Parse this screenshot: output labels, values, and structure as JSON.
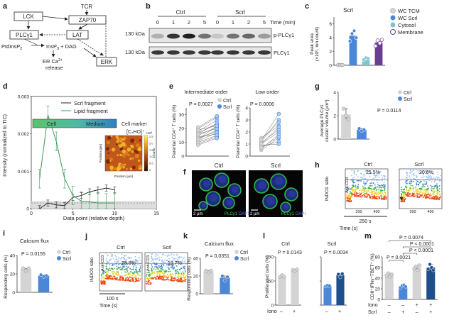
{
  "panels": {
    "a": {
      "letter": "a",
      "nodes": {
        "tcr": "TCR",
        "lck": "LCK",
        "zap70": "ZAP70",
        "plcg1": "PLCγ1",
        "lat": "LAT",
        "ptdins": "PtdInsP",
        "ptdins_sub": "2",
        "insp": "InsP",
        "insp_sub": "3",
        "dag": " + DAG",
        "er1": "ER Ca",
        "er_sup": "2+",
        "er2": "release",
        "erk": "ERK"
      }
    },
    "b": {
      "letter": "b",
      "ctrl": "Ctrl",
      "scrl": "Scrl",
      "times": [
        "0",
        "1",
        "2",
        "5",
        "0",
        "1",
        "2",
        "5"
      ],
      "time_label": "Time (min)",
      "kda1": "130 kDa",
      "kda2": "130 kDa",
      "band1": "p-PLCγ1",
      "band2": "PLCγ1"
    },
    "c": {
      "letter": "c",
      "title": "Scrl",
      "ylabel1": "Peak area",
      "ylabel2": "(×10⁶, ion count)",
      "legend": [
        "WC TCM",
        "WC Scrl",
        "Cytosol",
        "Membrane"
      ]
    },
    "d": {
      "letter": "d",
      "legend": [
        "Scrl fragment",
        "Lipid fragment"
      ],
      "bar_cell": "Cell",
      "bar_medium": "Medium",
      "marker1": "Cell marker",
      "marker2": "[C₇HO]⁺",
      "inset_x": "Position (µm)",
      "inset_y": "Position (µm)",
      "inset_counts": "Counts",
      "inset_scale": "×10³",
      "inset_ticks": [
        "2.5",
        "2.0",
        "1.5",
        "1.0",
        "0.5",
        "0"
      ],
      "xlabel": "Data point (relative depth)",
      "ylabel": "Intensity (normalized to TIC)"
    },
    "e": {
      "letter": "e",
      "left_title": "Intermediate order",
      "right_title": "Low order",
      "left_p": "P = 0.0027",
      "right_p": "P = 0.0006",
      "left_ylabel": "Parental CD4⁺ T cells (%)",
      "right_ylabel": "Parental CD4⁺ T cells (%)",
      "legend": [
        "Ctrl",
        "Scrl"
      ]
    },
    "f": {
      "letter": "f",
      "ctrl": "Ctrl",
      "scrl": "Scrl",
      "scale": "2 µm",
      "stain1": "PLCγ1",
      "stain2": "DAPI"
    },
    "g": {
      "letter": "g",
      "p": "P = 0.0114",
      "ylabel1": "Average PLCγ1",
      "ylabel2": "cluster volume (µm³)",
      "legend": [
        "Ctrl",
        "Scrl"
      ]
    },
    "h": {
      "letter": "h",
      "ctrl": "Ctrl",
      "scrl": "Scrl",
      "pct_ctrl": "25.5%",
      "pct_scrl": "20.6%",
      "ylabel": "INDO1 ratio",
      "xlabel": "Time (s)",
      "anticd3": "Anti-CD3",
      "bar_label": "250 s"
    },
    "i": {
      "letter": "i",
      "title": "Calcium flux",
      "p": "P = 0.0155",
      "ylabel": "Responding cells (%)",
      "legend": [
        "Ctrl",
        "Scrl"
      ]
    },
    "j": {
      "letter": "j",
      "ctrl": "Ctrl",
      "scrl": "Scrl",
      "pct_ctrl": "25.8%",
      "pct_scrl": "19.7%",
      "ylabel": "INDO1 ratio",
      "xlabel": "Time (s)",
      "anticd3": "Anti-CD3",
      "bar_label": "100 s"
    },
    "k": {
      "letter": "k",
      "title": "Calcium flux",
      "p": "P = 0.0351",
      "ylabel": "Responding cells (%)",
      "legend": [
        "Ctrl",
        "Scrl"
      ]
    },
    "l": {
      "letter": "l",
      "left_title": "Ctrl",
      "right_title": "Scrl",
      "left_p": "P = 0.0143",
      "right_p": "P = 0.0034",
      "ylabel": "Proliferated cells (%)",
      "iono": "Iono",
      "minus": "–",
      "plus": "+"
    },
    "m": {
      "letter": "m",
      "p_top": "P = 0.0074",
      "p_mid1": "P < 0.0001",
      "p_mid2": "P < 0.0001",
      "p_low": "P = 0.0021",
      "ylabel": "CD8⁺IFNγ⁺TBET⁺ (%)",
      "iono": "Iono",
      "scrl": "Scrl",
      "row_iono": [
        "–",
        "–",
        "+",
        "+"
      ],
      "row_scrl": [
        "–",
        "+",
        "–",
        "+"
      ]
    }
  },
  "colors": {
    "ctrl": "#d4d4d4",
    "scrl": "#4b87d6",
    "dark_blue": "#1f4e8c",
    "cytosol": "#7fc4cc",
    "membrane": "#6a3d8f",
    "lipid_green": "#3a9a54",
    "accent_green": "#2ea84a"
  },
  "chart_data": [
    {
      "panel": "c",
      "type": "bar",
      "categories": [
        "WC TCM",
        "WC Scrl",
        "Cytosol",
        "Membrane"
      ],
      "values": [
        0.05,
        4.3,
        1.0,
        3.3
      ],
      "ylabel": "Peak area (×10⁶, ion count)",
      "ylim": [
        0,
        7
      ],
      "yticks": [
        0,
        2,
        4,
        6
      ]
    },
    {
      "panel": "d",
      "type": "line",
      "x": [
        1,
        2,
        3,
        4,
        5,
        6,
        7,
        8,
        9,
        10
      ],
      "series": [
        {
          "name": "Scrl fragment",
          "values": [
            0.0,
            0.00015,
            0.0001,
            8e-05,
            0.0003,
            0.00035,
            0.00045,
            0.0005,
            0.00055,
            0.0005
          ]
        },
        {
          "name": "Lipid fragment",
          "values": [
            0.0008,
            0.0025,
            0.0018,
            0.0008,
            0.00035,
            0.0002,
            0.00018,
            0.00015,
            0.00015,
            0.00015
          ]
        }
      ],
      "xlabel": "Data point (relative depth)",
      "ylabel": "Intensity (normalized to TIC)",
      "xlim": [
        0,
        15
      ],
      "ylim": [
        0,
        0.003
      ],
      "xticks": [
        0,
        5,
        10,
        15
      ],
      "yticks": [
        0,
        0.001,
        0.002,
        0.003
      ]
    },
    {
      "panel": "e-left",
      "type": "scatter",
      "x": [
        "Ctrl",
        "Scrl"
      ],
      "pairs": [
        [
          9,
          14
        ],
        [
          12,
          19
        ],
        [
          14,
          16
        ],
        [
          15,
          21
        ],
        [
          17,
          23
        ],
        [
          18,
          26
        ],
        [
          13,
          18
        ],
        [
          11,
          17
        ],
        [
          16,
          24
        ],
        [
          20,
          28
        ],
        [
          10,
          15
        ],
        [
          19,
          22
        ],
        [
          8,
          13
        ],
        [
          21,
          29
        ],
        [
          16,
          20
        ],
        [
          12,
          22
        ]
      ],
      "ylabel": "Parental CD4⁺ T cells (%)",
      "ylim": [
        0,
        35
      ],
      "yticks": [
        0,
        10,
        20,
        30
      ]
    },
    {
      "panel": "e-right",
      "type": "scatter",
      "x": [
        "Ctrl",
        "Scrl"
      ],
      "pairs": [
        [
          0.5,
          1.5
        ],
        [
          1.0,
          2.0
        ],
        [
          1.2,
          3.0
        ],
        [
          0.8,
          1.2
        ],
        [
          1.5,
          2.5
        ],
        [
          0.6,
          1.8
        ],
        [
          1.1,
          2.2
        ],
        [
          0.9,
          1.0
        ],
        [
          1.3,
          3.5
        ],
        [
          0.7,
          1.6
        ],
        [
          1.4,
          2.8
        ],
        [
          1.0,
          2.4
        ]
      ],
      "ylabel": "Parental CD4⁺ T cells (%)",
      "ylim": [
        0,
        4
      ],
      "yticks": [
        0,
        1,
        2,
        3,
        4
      ]
    },
    {
      "panel": "g",
      "type": "bar",
      "categories": [
        "Ctrl",
        "Scrl"
      ],
      "values": [
        2.1,
        0.8
      ],
      "points": [
        [
          2.6,
          2.0,
          1.7
        ],
        [
          0.9,
          0.7,
          0.8
        ]
      ],
      "ylabel": "Average PLCγ1 cluster volume (µm³)",
      "ylim": [
        0,
        4
      ],
      "yticks": [
        0,
        2,
        4
      ]
    },
    {
      "panel": "i",
      "type": "bar",
      "categories": [
        "Ctrl",
        "Scrl"
      ],
      "values": [
        25,
        18
      ],
      "points": [
        [
          26,
          23,
          26
        ],
        [
          19,
          17,
          18
        ]
      ],
      "ylabel": "Responding cells (%)",
      "ylim": [
        0,
        40
      ],
      "yticks": [
        0,
        20,
        40
      ]
    },
    {
      "panel": "k",
      "type": "bar",
      "categories": [
        "Ctrl",
        "Scrl"
      ],
      "values": [
        25,
        18
      ],
      "points": [
        [
          26,
          24,
          26
        ],
        [
          20,
          15,
          19
        ]
      ],
      "ylabel": "Responding cells (%)",
      "ylim": [
        0,
        40
      ],
      "yticks": [
        0,
        20,
        40
      ]
    },
    {
      "panel": "l-left",
      "type": "bar",
      "categories": [
        "–",
        "+"
      ],
      "values": [
        60,
        72
      ],
      "points": [
        [
          58,
          62,
          59
        ],
        [
          73,
          70,
          74
        ]
      ],
      "ylabel": "Proliferated cells (%)",
      "ylim": [
        0,
        100
      ],
      "yticks": [
        0,
        50,
        100
      ]
    },
    {
      "panel": "l-right",
      "type": "bar",
      "categories": [
        "–",
        "+"
      ],
      "values": [
        40,
        62
      ],
      "points": [
        [
          39,
          41,
          40
        ],
        [
          64,
          58,
          65
        ]
      ],
      "ylim": [
        0,
        100
      ]
    },
    {
      "panel": "m",
      "type": "bar",
      "categories": [
        "–/–",
        "–/+",
        "+/–",
        "+/+"
      ],
      "values": [
        46,
        25,
        60,
        60
      ],
      "points": [
        [
          45,
          49,
          43,
          47
        ],
        [
          22,
          26,
          27,
          24
        ],
        [
          58,
          62,
          55,
          64
        ],
        [
          57,
          66,
          60,
          55
        ]
      ],
      "ylabel": "CD8⁺IFNγ⁺TBET⁺ (%)",
      "ylim": [
        0,
        80
      ],
      "yticks": [
        0,
        20,
        40,
        60,
        80
      ]
    }
  ]
}
